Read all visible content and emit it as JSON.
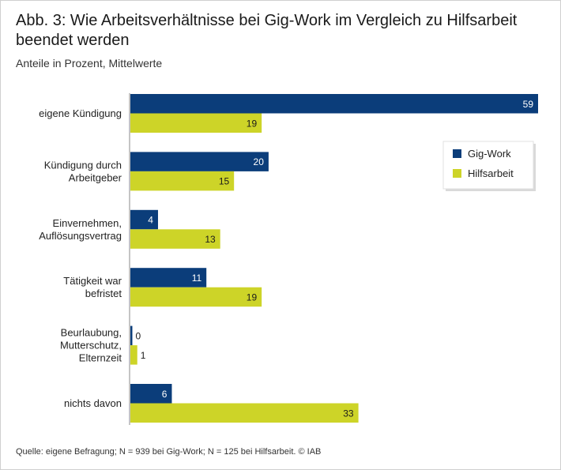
{
  "title": "Abb. 3: Wie Arbeitsverhältnisse bei Gig-Work im Vergleich zu Hilfsarbeit beendet werden",
  "subtitle": "Anteile in Prozent, Mittelwerte",
  "source": "Quelle: eigene Befragung; N = 939 bei Gig-Work; N = 125 bei Hilfsarbeit. © IAB",
  "colors": {
    "gig": "#0b3d7a",
    "hilfs": "#cdd428"
  },
  "chart_data": {
    "type": "bar",
    "orientation": "horizontal",
    "categories": [
      [
        "eigene Kündigung"
      ],
      [
        "Kündigung durch",
        "Arbeitgeber"
      ],
      [
        "Einvernehmen,",
        "Auflösungsvertrag"
      ],
      [
        "Tätigkeit war",
        "befristet"
      ],
      [
        "Beurlaubung,",
        "Mutterschutz,",
        "Elternzeit"
      ],
      [
        "nichts davon"
      ]
    ],
    "series": [
      {
        "name": "Gig-Work",
        "values": [
          59,
          20,
          4,
          11,
          0,
          6
        ]
      },
      {
        "name": "Hilfsarbeit",
        "values": [
          19,
          15,
          13,
          19,
          1,
          33
        ]
      }
    ],
    "xlim": [
      0,
      59
    ],
    "grid": false,
    "legend_position": "right"
  }
}
